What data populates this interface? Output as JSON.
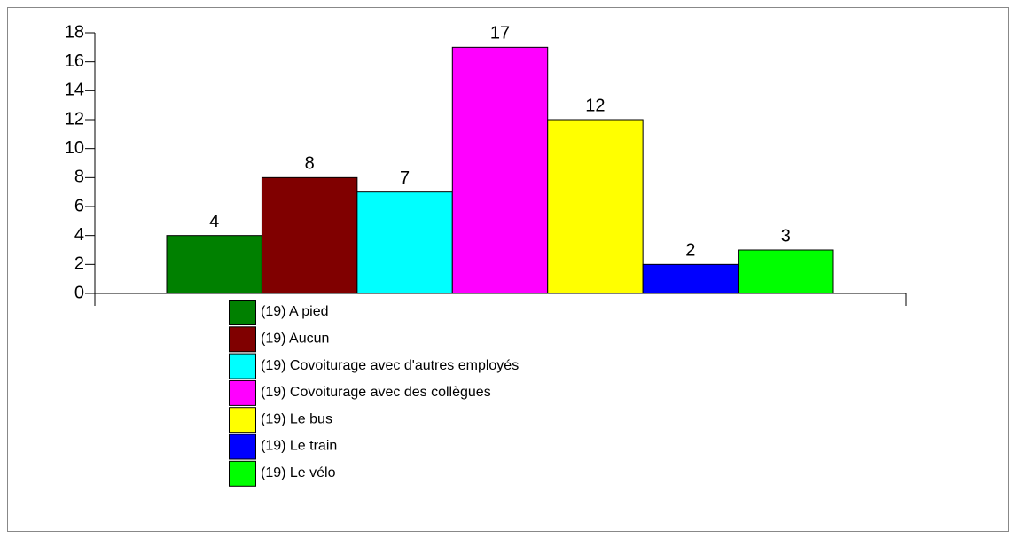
{
  "chart_data": {
    "type": "bar",
    "categories": [
      "(19) A pied",
      "(19) Aucun",
      "(19) Covoiturage avec d'autres employés",
      "(19) Covoiturage avec des collègues",
      "(19) Le bus",
      "(19) Le train",
      "(19) Le vélo"
    ],
    "values": [
      4,
      8,
      7,
      17,
      12,
      2,
      3
    ],
    "colors": [
      "#008000",
      "#800000",
      "#00ffff",
      "#ff00ff",
      "#ffff00",
      "#0000ff",
      "#00ff00"
    ],
    "ylim": [
      0,
      18
    ],
    "yticks": [
      0,
      2,
      4,
      6,
      8,
      10,
      12,
      14,
      16,
      18
    ],
    "grid": false
  }
}
